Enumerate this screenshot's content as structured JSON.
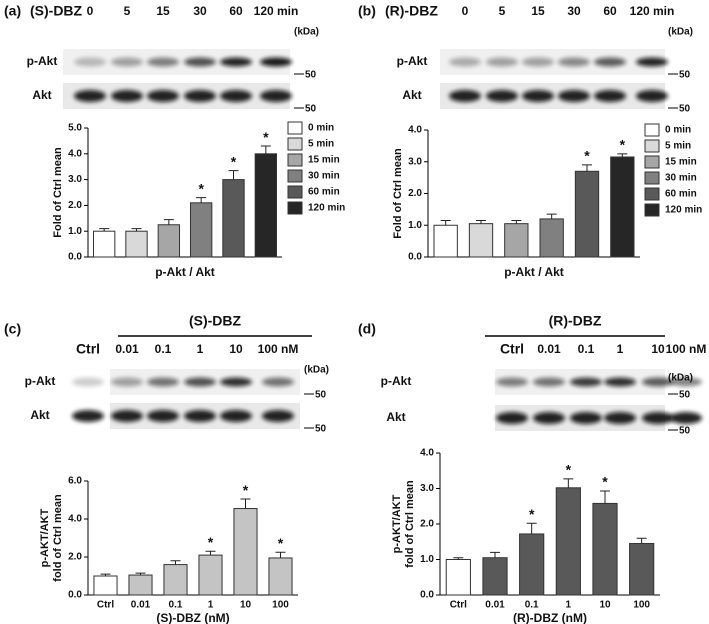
{
  "panels": [
    {
      "label": "(a)",
      "blot": {
        "treatment": "(S)-DBZ",
        "lanes": [
          "0",
          "5",
          "15",
          "30",
          "60",
          "120 min"
        ],
        "rows": [
          "p-Akt",
          "Akt"
        ],
        "unit": "(kDa)",
        "markers": [
          50,
          50
        ]
      }
    },
    {
      "label": "(b)",
      "blot": {
        "treatment": "(R)-DBZ",
        "lanes": [
          "0",
          "5",
          "15",
          "30",
          "60",
          "120 min"
        ],
        "rows": [
          "p-Akt",
          "Akt"
        ],
        "unit": "(kDa)",
        "markers": [
          50,
          50
        ]
      }
    },
    {
      "label": "(c)",
      "blot": {
        "treatment": "(S)-DBZ",
        "control": "Ctrl",
        "lanes": [
          "0.01",
          "0.1",
          "1",
          "10",
          "100 nM"
        ],
        "rows": [
          "p-Akt",
          "Akt"
        ],
        "unit": "(kDa)",
        "markers": [
          50,
          50
        ]
      }
    },
    {
      "label": "(d)",
      "blot": {
        "treatment": "(R)-DBZ",
        "control": "Ctrl",
        "lanes": [
          "0.01",
          "0.1",
          "1",
          "10",
          "100 nM"
        ],
        "rows": [
          "p-Akt",
          "Akt"
        ],
        "unit": "(kDa)",
        "markers": [
          50,
          50
        ]
      }
    }
  ],
  "chart_data": [
    {
      "type": "bar",
      "categories": [
        "0 min",
        "5 min",
        "15 min",
        "30 min",
        "60 min",
        "120 min"
      ],
      "legend": true,
      "values": [
        1.0,
        1.0,
        1.25,
        2.1,
        3.0,
        4.0
      ],
      "errors": [
        0.1,
        0.1,
        0.2,
        0.2,
        0.35,
        0.3
      ],
      "value_annotations": [
        null,
        null,
        null,
        "*",
        "*",
        "*"
      ],
      "colors": [
        "#ffffff",
        "#d9d9d9",
        "#a6a6a6",
        "#808080",
        "#595959",
        "#262626"
      ],
      "ylim": [
        0,
        5
      ],
      "yticks": [
        {
          "value": 0,
          "label": "0.0"
        },
        {
          "value": 1,
          "label": "1.0"
        },
        {
          "value": 2,
          "label": "2.0"
        },
        {
          "value": 3,
          "label": "3.0"
        },
        {
          "value": 4,
          "label": "4.0"
        },
        {
          "value": 5,
          "label": "5.0"
        }
      ],
      "y_label": [
        "Fold of Ctrl mean"
      ],
      "x_label": "p-Akt / Akt"
    },
    {
      "type": "bar",
      "categories": [
        "0 min",
        "5 min",
        "15 min",
        "30 min",
        "60 min",
        "120 min"
      ],
      "legend": true,
      "values": [
        1.0,
        1.05,
        1.05,
        1.2,
        2.7,
        3.15
      ],
      "errors": [
        0.15,
        0.1,
        0.1,
        0.15,
        0.2,
        0.1
      ],
      "value_annotations": [
        null,
        null,
        null,
        null,
        "*",
        "*"
      ],
      "colors": [
        "#ffffff",
        "#d9d9d9",
        "#a6a6a6",
        "#808080",
        "#595959",
        "#262626"
      ],
      "ylim": [
        0,
        4
      ],
      "yticks": [
        {
          "value": 0,
          "label": "0.0"
        },
        {
          "value": 1,
          "label": "1.0"
        },
        {
          "value": 2,
          "label": "2.0"
        },
        {
          "value": 3,
          "label": "3.0"
        },
        {
          "value": 4,
          "label": "4.0"
        }
      ],
      "y_label": [
        "Fold of Ctrl mean"
      ],
      "x_label": "p-Akt / Akt"
    },
    {
      "type": "bar",
      "categories": [
        "Ctrl",
        "0.01",
        "0.1",
        "1",
        "10",
        "100"
      ],
      "legend": false,
      "values": [
        1.0,
        1.05,
        1.6,
        2.1,
        4.55,
        1.95
      ],
      "errors": [
        0.1,
        0.1,
        0.2,
        0.2,
        0.5,
        0.3
      ],
      "value_annotations": [
        null,
        null,
        null,
        "*",
        "*",
        "*"
      ],
      "colors": [
        "#ffffff",
        "#c4c4c4",
        "#c4c4c4",
        "#c4c4c4",
        "#c4c4c4",
        "#c4c4c4"
      ],
      "ylim": [
        0,
        6
      ],
      "yticks": [
        {
          "value": 0,
          "label": "0.0"
        },
        {
          "value": 2,
          "label": "2.0"
        },
        {
          "value": 4,
          "label": "4.0"
        },
        {
          "value": 6,
          "label": "6.0"
        }
      ],
      "y_label": [
        "p-AKT/AKT",
        "fold of Ctrl mean"
      ],
      "x_label": "(S)-DBZ (nM)"
    },
    {
      "type": "bar",
      "categories": [
        "Ctrl",
        "0.01",
        "0.1",
        "1",
        "10",
        "100"
      ],
      "legend": false,
      "values": [
        1.0,
        1.05,
        1.72,
        3.02,
        2.58,
        1.45
      ],
      "errors": [
        0.05,
        0.15,
        0.3,
        0.25,
        0.35,
        0.15
      ],
      "value_annotations": [
        null,
        null,
        "*",
        "*",
        "*",
        null
      ],
      "colors": [
        "#ffffff",
        "#595959",
        "#595959",
        "#595959",
        "#595959",
        "#595959"
      ],
      "ylim": [
        0,
        4
      ],
      "yticks": [
        {
          "value": 0,
          "label": "0.0"
        },
        {
          "value": 1,
          "label": "1.0"
        },
        {
          "value": 2,
          "label": "2.0"
        },
        {
          "value": 3,
          "label": "3.0"
        },
        {
          "value": 4,
          "label": "4.0"
        }
      ],
      "y_label": [
        "p-AKT/AKT",
        "fold of Ctrl mean"
      ],
      "x_label": "(R)-DBZ (nM)"
    }
  ]
}
